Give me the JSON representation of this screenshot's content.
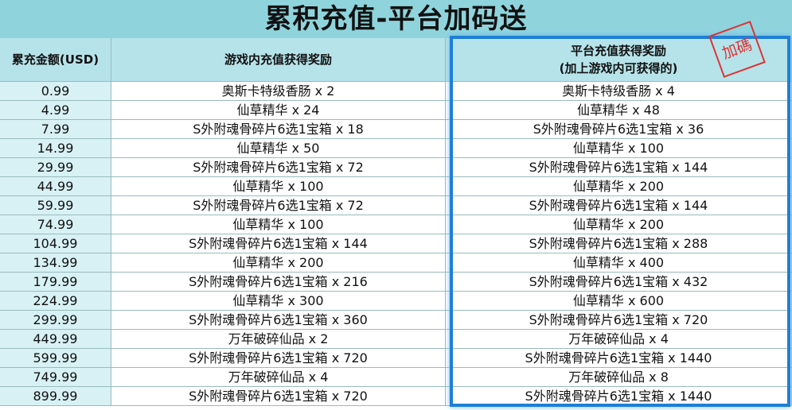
{
  "header": {
    "title": "累积充值-平台加码送",
    "stamp": "加碼"
  },
  "table": {
    "columns": [
      "累充金额(USD)",
      "游戏内充值获得奖励",
      [
        "平台充值获得奖励",
        "(加上游戏内可获得的)"
      ]
    ],
    "rows": [
      [
        "0.99",
        "奥斯卡特级香肠 x 2",
        "奥斯卡特级香肠 x 4"
      ],
      [
        "4.99",
        "仙草精华 x 24",
        "仙草精华 x 48"
      ],
      [
        "7.99",
        "S外附魂骨碎片6选1宝箱 x 18",
        "S外附魂骨碎片6选1宝箱 x 36"
      ],
      [
        "14.99",
        "仙草精华 x 50",
        "仙草精华 x 100"
      ],
      [
        "29.99",
        "S外附魂骨碎片6选1宝箱 x 72",
        "S外附魂骨碎片6选1宝箱 x 144"
      ],
      [
        "44.99",
        "仙草精华 x 100",
        "仙草精华 x 200"
      ],
      [
        "59.99",
        "S外附魂骨碎片6选1宝箱 x 72",
        "S外附魂骨碎片6选1宝箱 x 144"
      ],
      [
        "74.99",
        "仙草精华 x 100",
        "仙草精华 x 200"
      ],
      [
        "104.99",
        "S外附魂骨碎片6选1宝箱 x 144",
        "S外附魂骨碎片6选1宝箱 x 288"
      ],
      [
        "134.99",
        "仙草精华 x 200",
        "仙草精华 x 400"
      ],
      [
        "179.99",
        "S外附魂骨碎片6选1宝箱 x 216",
        "S外附魂骨碎片6选1宝箱 x 432"
      ],
      [
        "224.99",
        "仙草精华 x 300",
        "仙草精华 x 600"
      ],
      [
        "299.99",
        "S外附魂骨碎片6选1宝箱 x 360",
        "S外附魂骨碎片6选1宝箱 x 720"
      ],
      [
        "449.99",
        "万年破碎仙品 x 2",
        "万年破碎仙品 x 4"
      ],
      [
        "599.99",
        "S外附魂骨碎片6选1宝箱 x 720",
        "S外附魂骨碎片6选1宝箱 x 1440"
      ],
      [
        "749.99",
        "万年破碎仙品 x 4",
        "万年破碎仙品 x 8"
      ],
      [
        "899.99",
        "S外附魂骨碎片6选1宝箱 x 720",
        "S外附魂骨碎片6选1宝箱 x 1440"
      ]
    ]
  }
}
